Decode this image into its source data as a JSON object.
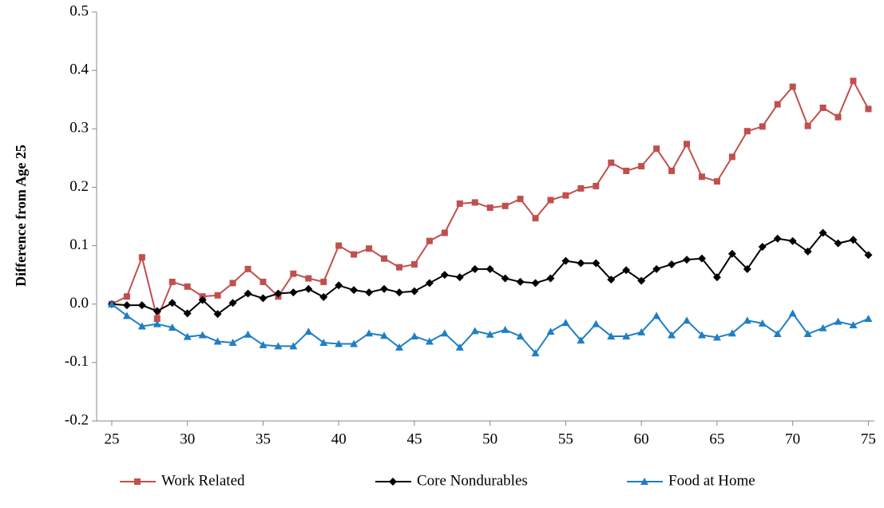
{
  "chart_data": {
    "type": "line",
    "y_label": "Difference from Age 25",
    "x": [
      25,
      26,
      27,
      28,
      29,
      30,
      31,
      32,
      33,
      34,
      35,
      36,
      37,
      38,
      39,
      40,
      41,
      42,
      43,
      44,
      45,
      46,
      47,
      48,
      49,
      50,
      51,
      52,
      53,
      54,
      55,
      56,
      57,
      58,
      59,
      60,
      61,
      62,
      63,
      64,
      65,
      66,
      67,
      68,
      69,
      70,
      71,
      72,
      73,
      74,
      75
    ],
    "series": [
      {
        "name": "Work Related",
        "color": "#c0504d",
        "marker": "square",
        "values": [
          0,
          0.013,
          0.08,
          -0.025,
          0.038,
          0.03,
          0.013,
          0.015,
          0.036,
          0.06,
          0.038,
          0.013,
          0.052,
          0.044,
          0.038,
          0.1,
          0.085,
          0.095,
          0.078,
          0.063,
          0.068,
          0.108,
          0.122,
          0.172,
          0.174,
          0.165,
          0.168,
          0.18,
          0.147,
          0.178,
          0.186,
          0.198,
          0.202,
          0.242,
          0.228,
          0.236,
          0.266,
          0.228,
          0.274,
          0.218,
          0.21,
          0.252,
          0.296,
          0.304,
          0.342,
          0.372,
          0.305,
          0.336,
          0.32,
          0.382,
          0.334
        ]
      },
      {
        "name": "Core Nondurables",
        "color": "#000000",
        "marker": "diamond",
        "values": [
          0,
          -0.002,
          -0.002,
          -0.012,
          0.002,
          -0.016,
          0.007,
          -0.017,
          0.002,
          0.018,
          0.01,
          0.018,
          0.02,
          0.026,
          0.012,
          0.032,
          0.024,
          0.02,
          0.026,
          0.02,
          0.022,
          0.036,
          0.05,
          0.046,
          0.06,
          0.06,
          0.044,
          0.038,
          0.036,
          0.044,
          0.074,
          0.07,
          0.07,
          0.042,
          0.058,
          0.04,
          0.06,
          0.068,
          0.076,
          0.078,
          0.046,
          0.086,
          0.06,
          0.098,
          0.112,
          0.108,
          0.09,
          0.122,
          0.104,
          0.11,
          0.084
        ]
      },
      {
        "name": "Food at Home",
        "color": "#1f7fc4",
        "marker": "triangle",
        "values": [
          0,
          -0.02,
          -0.038,
          -0.034,
          -0.04,
          -0.056,
          -0.053,
          -0.064,
          -0.066,
          -0.052,
          -0.07,
          -0.072,
          -0.072,
          -0.047,
          -0.066,
          -0.068,
          -0.068,
          -0.05,
          -0.054,
          -0.074,
          -0.055,
          -0.064,
          -0.05,
          -0.074,
          -0.046,
          -0.052,
          -0.044,
          -0.055,
          -0.084,
          -0.047,
          -0.032,
          -0.062,
          -0.034,
          -0.055,
          -0.055,
          -0.048,
          -0.02,
          -0.053,
          -0.028,
          -0.053,
          -0.057,
          -0.05,
          -0.028,
          -0.033,
          -0.051,
          -0.016,
          -0.051,
          -0.041,
          -0.03,
          -0.036,
          -0.025
        ]
      }
    ],
    "xlim": [
      24,
      75.4
    ],
    "xticks": [
      25,
      30,
      35,
      40,
      45,
      50,
      55,
      60,
      65,
      70,
      75
    ],
    "ylim": [
      -0.2,
      0.5
    ],
    "yticks": [
      -0.2,
      -0.1,
      {
        "value": 0,
        "label": "0.0"
      },
      0.1,
      0.2,
      0.3,
      0.4,
      0.5
    ],
    "grid": false,
    "legend": "bottom"
  }
}
